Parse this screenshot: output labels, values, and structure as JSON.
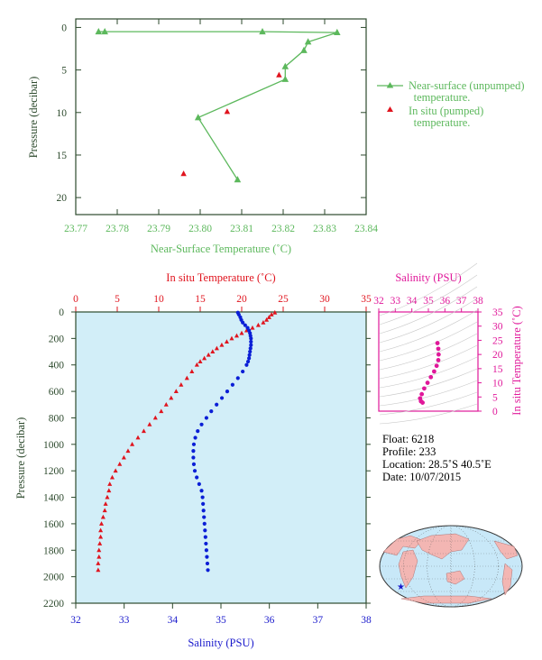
{
  "colors": {
    "near_surface": "#5cb85c",
    "in_situ": "#e0141e",
    "salinity": "#0a1ed6",
    "salinity_axis": "#1a1acc",
    "inset": "#e0189a",
    "axis_dark": "#2d4a2d",
    "plot_bg": "#d2eef8"
  },
  "chart_data": [
    {
      "type": "line",
      "xlabel": "Near-Surface Temperature (˚C)",
      "ylabel": "Pressure (decibar)",
      "xlim": [
        23.77,
        23.84
      ],
      "ylim": [
        22,
        -1
      ],
      "xticks": [
        "23.77",
        "23.78",
        "23.79",
        "23.80",
        "23.81",
        "23.82",
        "23.83",
        "23.84"
      ],
      "yticks": [
        "0",
        "5",
        "10",
        "15",
        "20"
      ],
      "series": [
        {
          "name": "Near-surface (unpumped) temperature.",
          "marker": "triangle",
          "points": [
            [
              23.7755,
              0.5
            ],
            [
              23.777,
              0.5
            ],
            [
              23.815,
              0.5
            ],
            [
              23.833,
              0.6
            ],
            [
              23.826,
              1.7
            ],
            [
              23.825,
              2.7
            ],
            [
              23.8205,
              4.6
            ],
            [
              23.8205,
              6.1
            ],
            [
              23.7995,
              10.6
            ],
            [
              23.809,
              17.9
            ]
          ]
        },
        {
          "name": "In situ (pumped) temperature.",
          "marker": "triangle",
          "points": [
            [
              23.819,
              5.6
            ],
            [
              23.8065,
              9.9
            ],
            [
              23.796,
              17.2
            ]
          ]
        }
      ]
    },
    {
      "type": "line",
      "ylabel": "Pressure (decibar)",
      "xlabel_top": "In situ Temperature (˚C)",
      "xlabel_bottom": "Salinity (PSU)",
      "temp_xlim": [
        0,
        35
      ],
      "sal_xlim": [
        32,
        38
      ],
      "ylim": [
        2200,
        0
      ],
      "temp_ticks": [
        "0",
        "5",
        "10",
        "15",
        "20",
        "25",
        "30",
        "35"
      ],
      "sal_ticks": [
        "32",
        "33",
        "34",
        "35",
        "36",
        "37",
        "38"
      ],
      "pressure_ticks": [
        "0",
        "200",
        "400",
        "600",
        "800",
        "1000",
        "1200",
        "1400",
        "1600",
        "1800",
        "2000",
        "2200"
      ],
      "temperature": [
        [
          24.0,
          5
        ],
        [
          23.6,
          20
        ],
        [
          23.3,
          40
        ],
        [
          23.0,
          60
        ],
        [
          22.6,
          80
        ],
        [
          22.0,
          100
        ],
        [
          21.3,
          120
        ],
        [
          20.6,
          140
        ],
        [
          20.0,
          160
        ],
        [
          19.4,
          180
        ],
        [
          18.8,
          200
        ],
        [
          18.2,
          225
        ],
        [
          17.6,
          250
        ],
        [
          17.0,
          275
        ],
        [
          16.5,
          300
        ],
        [
          16.0,
          325
        ],
        [
          15.5,
          350
        ],
        [
          15.0,
          375
        ],
        [
          14.6,
          400
        ],
        [
          14.0,
          450
        ],
        [
          13.4,
          500
        ],
        [
          12.7,
          550
        ],
        [
          12.1,
          600
        ],
        [
          11.5,
          650
        ],
        [
          10.9,
          700
        ],
        [
          10.3,
          750
        ],
        [
          9.6,
          800
        ],
        [
          8.9,
          850
        ],
        [
          8.2,
          900
        ],
        [
          7.5,
          950
        ],
        [
          6.8,
          1000
        ],
        [
          6.3,
          1050
        ],
        [
          5.8,
          1100
        ],
        [
          5.3,
          1150
        ],
        [
          4.8,
          1200
        ],
        [
          4.4,
          1250
        ],
        [
          4.1,
          1300
        ],
        [
          4.0,
          1350
        ],
        [
          3.8,
          1400
        ],
        [
          3.6,
          1450
        ],
        [
          3.5,
          1500
        ],
        [
          3.3,
          1550
        ],
        [
          3.1,
          1600
        ],
        [
          3.0,
          1650
        ],
        [
          3.0,
          1700
        ],
        [
          2.9,
          1750
        ],
        [
          2.8,
          1800
        ],
        [
          2.8,
          1850
        ],
        [
          2.7,
          1900
        ],
        [
          2.7,
          1950
        ]
      ],
      "salinity": [
        [
          35.35,
          5
        ],
        [
          35.37,
          20
        ],
        [
          35.4,
          40
        ],
        [
          35.42,
          60
        ],
        [
          35.45,
          80
        ],
        [
          35.5,
          100
        ],
        [
          35.55,
          120
        ],
        [
          35.58,
          140
        ],
        [
          35.6,
          160
        ],
        [
          35.61,
          180
        ],
        [
          35.62,
          200
        ],
        [
          35.62,
          225
        ],
        [
          35.62,
          250
        ],
        [
          35.61,
          275
        ],
        [
          35.6,
          300
        ],
        [
          35.59,
          325
        ],
        [
          35.58,
          350
        ],
        [
          35.56,
          375
        ],
        [
          35.53,
          400
        ],
        [
          35.45,
          450
        ],
        [
          35.35,
          500
        ],
        [
          35.24,
          550
        ],
        [
          35.13,
          600
        ],
        [
          35.02,
          650
        ],
        [
          34.91,
          700
        ],
        [
          34.8,
          750
        ],
        [
          34.7,
          800
        ],
        [
          34.6,
          850
        ],
        [
          34.52,
          900
        ],
        [
          34.47,
          950
        ],
        [
          34.44,
          1000
        ],
        [
          34.43,
          1050
        ],
        [
          34.43,
          1100
        ],
        [
          34.44,
          1150
        ],
        [
          34.46,
          1200
        ],
        [
          34.5,
          1250
        ],
        [
          34.55,
          1300
        ],
        [
          34.6,
          1350
        ],
        [
          34.62,
          1400
        ],
        [
          34.63,
          1450
        ],
        [
          34.64,
          1500
        ],
        [
          34.65,
          1550
        ],
        [
          34.66,
          1600
        ],
        [
          34.67,
          1650
        ],
        [
          34.68,
          1700
        ],
        [
          34.69,
          1750
        ],
        [
          34.7,
          1800
        ],
        [
          34.71,
          1850
        ],
        [
          34.72,
          1900
        ],
        [
          34.73,
          1950
        ]
      ]
    },
    {
      "type": "scatter",
      "xlabel": "Salinity (PSU)",
      "ylabel": "In situ Temperature (˚C)",
      "xlim": [
        32,
        38
      ],
      "ylim": [
        0,
        35
      ],
      "xticks": [
        "32",
        "33",
        "34",
        "35",
        "36",
        "37",
        "38"
      ],
      "yticks": [
        "0",
        "5",
        "10",
        "15",
        "20",
        "25",
        "30",
        "35"
      ],
      "points": [
        [
          35.55,
          24
        ],
        [
          35.6,
          22
        ],
        [
          35.62,
          20
        ],
        [
          35.6,
          18
        ],
        [
          35.5,
          16
        ],
        [
          35.35,
          14
        ],
        [
          35.15,
          12
        ],
        [
          34.95,
          10
        ],
        [
          34.75,
          8
        ],
        [
          34.6,
          6
        ],
        [
          34.5,
          4.5
        ],
        [
          34.55,
          3.5
        ],
        [
          34.65,
          3
        ]
      ]
    }
  ],
  "legend": {
    "near_surface_label_1": "Near-surface (unpumped)",
    "near_surface_label_2": "temperature.",
    "in_situ_label_1": "In situ (pumped)",
    "in_situ_label_2": "temperature."
  },
  "float_info": {
    "float": "Float: 6218",
    "profile": "Profile: 233",
    "location": "Location: 28.5˚S 40.5˚E",
    "date": "Date: 10/07/2015"
  }
}
